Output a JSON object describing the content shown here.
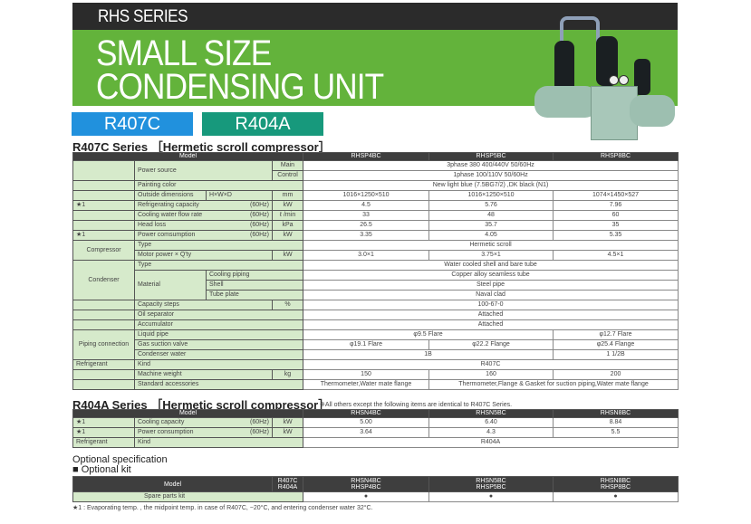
{
  "header": {
    "series": "RHS SERIES",
    "title_line1": "SMALL SIZE",
    "title_line2": "CONDENSING UNIT",
    "tags": [
      "R407C",
      "R404A"
    ],
    "colors": {
      "dark_band": "#2b2b2b",
      "green_band": "#63b33b",
      "r407c_tag": "#2191dd",
      "r404a_tag": "#17997c",
      "label_cell": "#d6eacb",
      "table_header": "#3e3e3e"
    }
  },
  "r407c": {
    "title": "R407C Series",
    "bracket": "［Hermetic scroll compressor］",
    "model_label": "Model",
    "models": [
      "RHSP4BC",
      "RHSP5BC",
      "RHSP8BC"
    ],
    "power_source": {
      "label": "Power source",
      "main": "Main",
      "control": "Control",
      "main_value": "3phase 380 400/440V 50/60Hz",
      "control_value": "1phase 100/110V 50/60Hz"
    },
    "painting_color": {
      "label": "Painting color",
      "value": "New light blue (7.5BG7/2) ,DK black (N1)"
    },
    "outside_dimensions": {
      "label": "Outside dimensions",
      "sub": "H×W×D",
      "unit": "mm",
      "values": [
        "1016×1250×510",
        "1016×1250×510",
        "1074×1450×527"
      ]
    },
    "refrigerating_capacity": {
      "mark": "★1",
      "label": "Refrigerating capacity",
      "freq": "(60Hz)",
      "unit": "kW",
      "values": [
        "4.5",
        "5.76",
        "7.96"
      ]
    },
    "cooling_water_flow_rate": {
      "label": "Cooling water flow rate",
      "freq": "(60Hz)",
      "unit": "ℓ /min",
      "values": [
        "33",
        "48",
        "60"
      ]
    },
    "head_loss": {
      "label": "Head loss",
      "freq": "(60Hz)",
      "unit": "kPa",
      "values": [
        "26.5",
        "35.7",
        "35"
      ]
    },
    "power_consumption": {
      "mark": "★1",
      "label": "Power comsumption",
      "freq": "(60Hz)",
      "unit": "kW",
      "values": [
        "3.35",
        "4.05",
        "5.35"
      ]
    },
    "compressor": {
      "group": "Compressor",
      "type_label": "Type",
      "type_value": "Hermetic scroll",
      "motor_label": "Motor power × Q'ty",
      "motor_unit": "kW",
      "motor_values": [
        "3.0×1",
        "3.75×1",
        "4.5×1"
      ]
    },
    "condenser": {
      "group": "Condenser",
      "type_label": "Type",
      "type_value": "Water cooled shell and bare tube",
      "material_label": "Material",
      "materials": [
        {
          "label": "Cooling piping",
          "value": "Copper alloy seamless tube"
        },
        {
          "label": "Shell",
          "value": "Steel pipe"
        },
        {
          "label": "Tube plate",
          "value": "Naval clad"
        }
      ]
    },
    "capacity_steps": {
      "label": "Capacity steps",
      "unit": "%",
      "value": "100-67-0"
    },
    "oil_separator": {
      "label": "Oil separator",
      "value": "Attached"
    },
    "accumulator": {
      "label": "Accumulator",
      "value": "Attached"
    },
    "piping_connection": {
      "group": "Piping connection",
      "liquid_pipe": {
        "label": "Liquid pipe",
        "values": [
          "φ9.5 Flare",
          "φ12.7 Flare"
        ]
      },
      "gas_suction_valve": {
        "label": "Gas suction valve",
        "values": [
          "φ19.1 Flare",
          "φ22.2 Flange",
          "φ25.4 Flange"
        ]
      },
      "condenser_water": {
        "label": "Condenser water",
        "values": [
          "1B",
          "1 1/2B"
        ]
      }
    },
    "refrigerant": {
      "group": "Refrigerant",
      "kind_label": "Kind",
      "kind_value": "R407C"
    },
    "machine_weight": {
      "label": "Machine weight",
      "unit": "kg",
      "values": [
        "150",
        "160",
        "200"
      ]
    },
    "standard_accessories": {
      "label": "Standard accessories",
      "values": [
        "Thermometer,Water mate flange",
        "Thermometer,Flange & Gasket for suction piping,Water mate flange"
      ]
    }
  },
  "r404a": {
    "title": "R404A Series",
    "bracket": "［Hermetic scroll compressor］",
    "note": "※All others except the following items are identical to R407C Series.",
    "model_label": "Model",
    "models": [
      "RHSN4BC",
      "RHSN5BC",
      "RHSN8BC"
    ],
    "cooling_capacity": {
      "mark": "★1",
      "label": "Cooling capacity",
      "freq": "(60Hz)",
      "unit": "kW",
      "values": [
        "5.00",
        "6.40",
        "8.84"
      ]
    },
    "power_consumption": {
      "mark": "★1",
      "label": "Power consumption",
      "freq": "(60Hz)",
      "unit": "kW",
      "values": [
        "3.64",
        "4.3",
        "5.5"
      ]
    },
    "refrigerant": {
      "group": "Refrigerant",
      "kind_label": "Kind",
      "kind_value": "R404A"
    }
  },
  "optional": {
    "heading": "Optional specification",
    "subheading": "■ Optional kit",
    "model_label": "Model",
    "refrigerants": [
      "R407C",
      "R404A"
    ],
    "models": [
      [
        "RHSN4BC",
        "RHSP4BC"
      ],
      [
        "RHSN5BC",
        "RHSP5BC"
      ],
      [
        "RHSN8BC",
        "RHSP8BC"
      ]
    ],
    "spare_parts_kit": {
      "label": "Spare parts kit",
      "availability": [
        "●",
        "●",
        "●"
      ]
    }
  },
  "footnote": "★1 : Evaporating temp. , the midpoint temp. in case of R407C, −20°C, and entering condenser water 32°C."
}
